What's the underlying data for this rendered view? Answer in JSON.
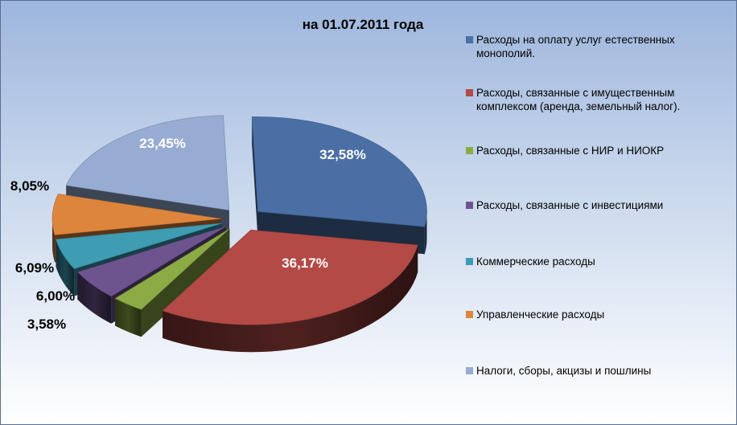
{
  "chart_data": {
    "type": "pie",
    "title": "на 01.07.2011 года",
    "legend_position": "right",
    "three_d": true,
    "exploded": true,
    "slices": [
      {
        "label": "Расходы на оплату услуг естественных монополий.",
        "value": 32.58,
        "value_label": "32,58%",
        "color": "#4a6fa5"
      },
      {
        "label": "Расходы, связанные с имущественным комплексом (аренда, земельный налог).",
        "value": 36.17,
        "value_label": "36,17%",
        "color": "#b34a46"
      },
      {
        "label": "Расходы, связанные с НИР и НИОКР",
        "value": 3.58,
        "value_label": "3,58%",
        "color": "#8cab45"
      },
      {
        "label": "Расходы, связанные с инвестициями",
        "value": 6.0,
        "value_label": "6,00%",
        "color": "#6e548f"
      },
      {
        "label": "Коммерческие расходы",
        "value": 6.09,
        "value_label": "6,09%",
        "color": "#3e9cb3"
      },
      {
        "label": "Управленческие расходы",
        "value": 8.05,
        "value_label": "8,05%",
        "color": "#dd853c"
      },
      {
        "label": "Налоги, сборы, акцизы и пошлины",
        "value": 23.45,
        "value_label": "23,45%",
        "color": "#96acd3"
      }
    ]
  }
}
